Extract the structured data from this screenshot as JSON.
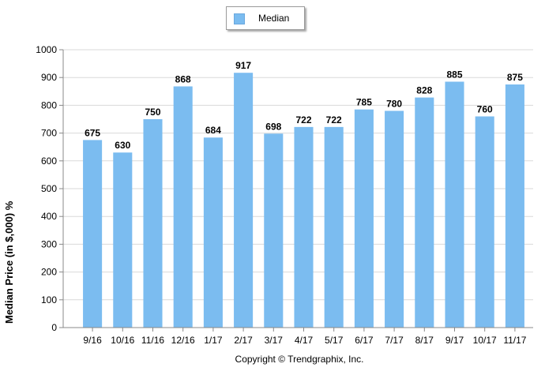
{
  "chart_data": {
    "type": "bar",
    "categories": [
      "9/16",
      "10/16",
      "11/16",
      "12/16",
      "1/17",
      "2/17",
      "3/17",
      "4/17",
      "5/17",
      "6/17",
      "7/17",
      "8/17",
      "9/17",
      "10/17",
      "11/17"
    ],
    "series": [
      {
        "name": "Median",
        "values": [
          675,
          630,
          750,
          868,
          684,
          917,
          698,
          722,
          722,
          785,
          780,
          828,
          885,
          760,
          875
        ]
      }
    ],
    "data_labels": [
      "675",
      "630",
      "750",
      "868",
      "684",
      "917",
      "698",
      "722",
      "722",
      "785",
      "780",
      "828",
      "885",
      "760",
      "875"
    ],
    "ylabel": "Median Price (in $,000) %",
    "xlabel": "",
    "ylim": [
      0,
      1000
    ],
    "yticks": [
      0,
      100,
      200,
      300,
      400,
      500,
      600,
      700,
      800,
      900,
      1000
    ],
    "grid": true,
    "legend_position": "top-center",
    "bar_color": "#7bbcf0",
    "grid_color": "#d9d9d9"
  },
  "legend": {
    "label": "Median"
  },
  "copyright": "Copyright © Trendgraphix, Inc."
}
